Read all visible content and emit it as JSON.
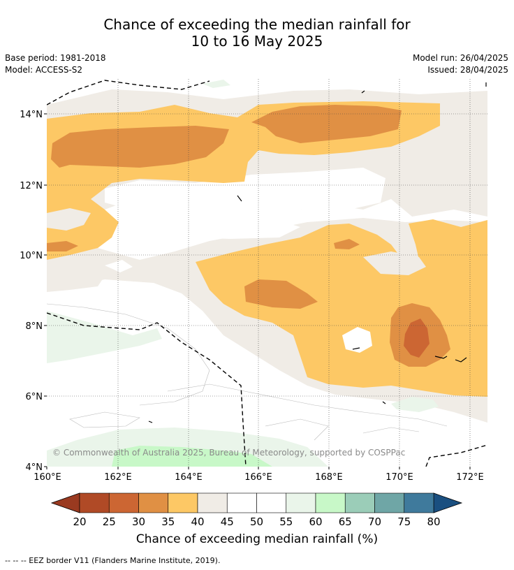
{
  "header": {
    "title_line1": "Chance of exceeding the median rainfall for",
    "title_line2": "10 to 16 May 2025",
    "base_period": "Base period: 1981-2018",
    "model": "Model: ACCESS-S2",
    "model_run": "Model run: 26/04/2025",
    "issued": "Issued: 28/04/2025"
  },
  "map": {
    "lat_labels": [
      "14°N",
      "12°N",
      "10°N",
      "8°N",
      "6°N",
      "4°N"
    ],
    "lon_labels": [
      "160°E",
      "162°E",
      "164°E",
      "166°E",
      "168°E",
      "170°E",
      "172°E"
    ],
    "copyright": "© Commonwealth of Australia 2025, Bureau of Meteorology, supported by COSPPac"
  },
  "colorbar": {
    "ticks": [
      "20",
      "25",
      "30",
      "35",
      "40",
      "45",
      "50",
      "55",
      "60",
      "65",
      "70",
      "75",
      "80"
    ],
    "colors": [
      "#b04a26",
      "#cc6633",
      "#e09044",
      "#fdc865",
      "#f0ece6",
      "#ffffff",
      "#ffffff",
      "#eaf5ea",
      "#c8f8c8",
      "#9bcdb8",
      "#6fa6a6",
      "#3f7a9c"
    ],
    "low_color": "#9a3a20",
    "high_color": "#1a4f80",
    "label": "Chance of exceeding median rainfall (%)"
  },
  "footnote": "--  --  -- EEZ border V11 (Flanders Marine Institute, 2019)."
}
